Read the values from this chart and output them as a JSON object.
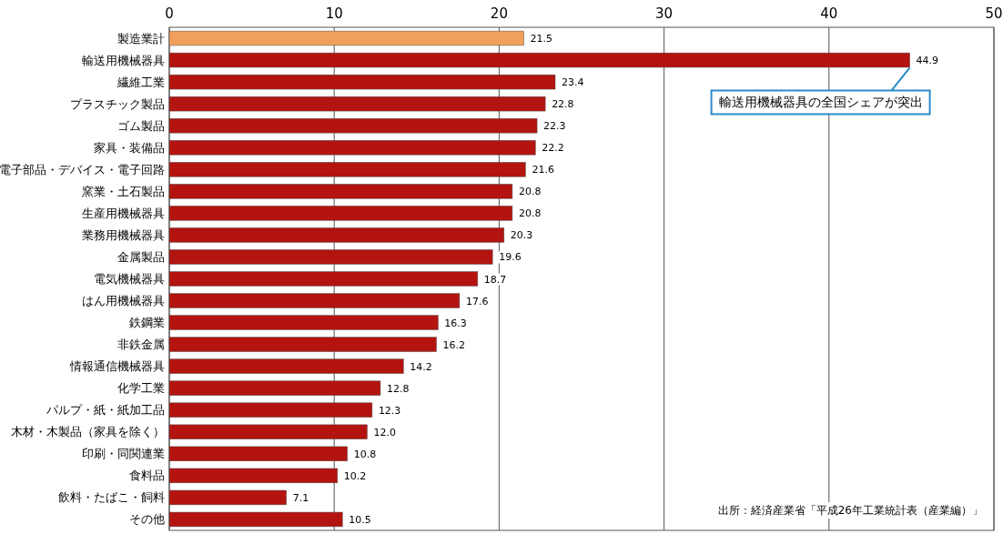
{
  "chart_data": {
    "type": "bar",
    "orientation": "horizontal",
    "categories": [
      "製造業計",
      "輸送用機械器具",
      "繊維工業",
      "プラスチック製品",
      "ゴム製品",
      "家具・装備品",
      "電子部品・デバイス・電子回路",
      "窯業・土石製品",
      "生産用機械器具",
      "業務用機械器具",
      "金属製品",
      "電気機械器具",
      "はん用機械器具",
      "鉄鋼業",
      "非鉄金属",
      "情報通信機械器具",
      "化学工業",
      "パルプ・紙・紙加工品",
      "木材・木製品（家具を除く）",
      "印刷・同関連業",
      "食料品",
      "飲料・たばこ・飼料",
      "その他"
    ],
    "values": [
      21.5,
      44.9,
      23.4,
      22.8,
      22.3,
      22.2,
      21.6,
      20.8,
      20.8,
      20.3,
      19.6,
      18.7,
      17.6,
      16.3,
      16.2,
      14.2,
      12.8,
      12.3,
      12.0,
      10.8,
      10.2,
      7.1,
      10.5
    ],
    "colors": [
      "#f0a05a",
      "#b3140f",
      "#b3140f",
      "#b3140f",
      "#b3140f",
      "#b3140f",
      "#b3140f",
      "#b3140f",
      "#b3140f",
      "#b3140f",
      "#b3140f",
      "#b3140f",
      "#b3140f",
      "#b3140f",
      "#b3140f",
      "#b3140f",
      "#b3140f",
      "#b3140f",
      "#b3140f",
      "#b3140f",
      "#b3140f",
      "#b3140f",
      "#b3140f"
    ],
    "value_labels": [
      "21.5",
      "44.9",
      "23.4",
      "22.8",
      "22.3",
      "22.2",
      "21.6",
      "20.8",
      "20.8",
      "20.3",
      "19.6",
      "18.7",
      "17.6",
      "16.3",
      "16.2",
      "14.2",
      "12.8",
      "12.3",
      "12.0",
      "10.8",
      "10.2",
      "7.1",
      "10.5"
    ],
    "xlim": [
      0,
      50
    ],
    "xticks": [
      0,
      10,
      20,
      30,
      40,
      50
    ],
    "grid": "x",
    "annotations": [
      {
        "text": "輸送用機械器具の全国シェアが突出",
        "x": 44.9,
        "y": "輸送用機械器具"
      },
      "出所：経済産業省「平成26年工業統計表（産業編）」"
    ]
  }
}
